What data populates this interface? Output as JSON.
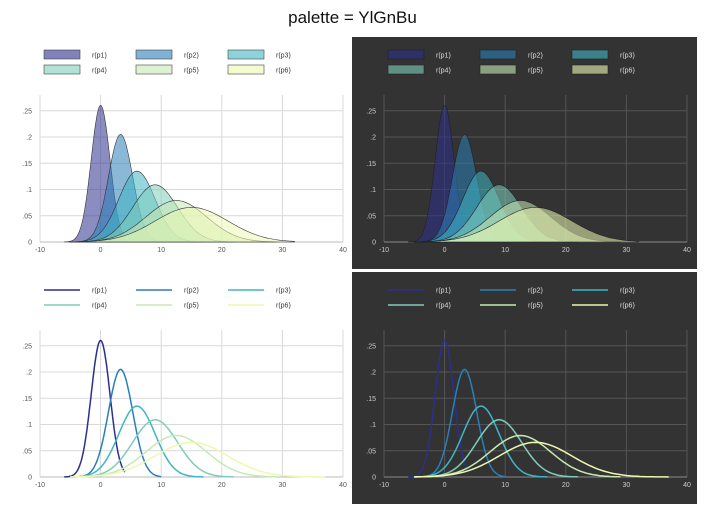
{
  "title": "palette = YlGnBu",
  "legend_labels": [
    "r(p1)",
    "r(p2)",
    "r(p3)",
    "r(p4)",
    "r(p5)",
    "r(p6)"
  ],
  "palette_colors": [
    "#2c2f8c",
    "#2a7fb8",
    "#40b5c4",
    "#7fcdbb",
    "#c7e9b4",
    "#edf8b1"
  ],
  "theme_colors": {
    "light_bg": "#ffffff",
    "dark_bg": "#333333",
    "light_grid": "#d9d9d9",
    "dark_grid": "#555555",
    "light_text": "#555555",
    "dark_text": "#cccccc"
  },
  "chart_data": [
    {
      "type": "area",
      "panel": "top-left",
      "theme": "light",
      "legend": "top",
      "x_ticks": [
        "-10",
        "0",
        "10",
        "20",
        "30",
        "40"
      ],
      "y_ticks": [
        "0",
        ".05",
        ".1",
        ".15",
        ".2",
        ".25"
      ],
      "xlim": [
        -10,
        40
      ],
      "ylim": [
        0,
        0.28
      ],
      "grid": true,
      "series": [
        {
          "name": "r(p1)",
          "mean": 0,
          "sd": 1.55,
          "peak": 0.26,
          "range": [
            -6,
            4
          ]
        },
        {
          "name": "r(p2)",
          "mean": 3.3,
          "sd": 2.0,
          "peak": 0.205,
          "range": [
            -5,
            10
          ]
        },
        {
          "name": "r(p3)",
          "mean": 6,
          "sd": 3.0,
          "peak": 0.135,
          "range": [
            -5,
            17
          ]
        },
        {
          "name": "r(p4)",
          "mean": 9,
          "sd": 3.7,
          "peak": 0.109,
          "range": [
            -5,
            22
          ]
        },
        {
          "name": "r(p5)",
          "mean": 12.5,
          "sd": 5.0,
          "peak": 0.079,
          "range": [
            -5,
            29
          ]
        },
        {
          "name": "r(p6)",
          "mean": 15,
          "sd": 6.0,
          "peak": 0.066,
          "range": [
            -5,
            32
          ]
        }
      ]
    },
    {
      "type": "area",
      "panel": "top-right",
      "theme": "dark",
      "legend": "top",
      "x_ticks": [
        "-10",
        "0",
        "10",
        "20",
        "30",
        "40"
      ],
      "y_ticks": [
        "0",
        ".05",
        ".1",
        ".15",
        ".2",
        ".25"
      ],
      "xlim": [
        -10,
        40
      ],
      "ylim": [
        0,
        0.28
      ],
      "grid": true,
      "series": [
        {
          "name": "r(p1)",
          "mean": 0,
          "sd": 1.55,
          "peak": 0.26,
          "range": [
            -6,
            4
          ]
        },
        {
          "name": "r(p2)",
          "mean": 3.3,
          "sd": 2.0,
          "peak": 0.205,
          "range": [
            -5,
            10
          ]
        },
        {
          "name": "r(p3)",
          "mean": 6,
          "sd": 3.0,
          "peak": 0.135,
          "range": [
            -5,
            17
          ]
        },
        {
          "name": "r(p4)",
          "mean": 9,
          "sd": 3.7,
          "peak": 0.109,
          "range": [
            -5,
            22
          ]
        },
        {
          "name": "r(p5)",
          "mean": 12.5,
          "sd": 5.0,
          "peak": 0.079,
          "range": [
            -5,
            29
          ]
        },
        {
          "name": "r(p6)",
          "mean": 15,
          "sd": 6.0,
          "peak": 0.066,
          "range": [
            -5,
            32
          ]
        }
      ]
    },
    {
      "type": "line",
      "panel": "bottom-left",
      "theme": "light",
      "legend": "top",
      "x_ticks": [
        "-10",
        "0",
        "10",
        "20",
        "30",
        "40"
      ],
      "y_ticks": [
        "0",
        ".05",
        ".1",
        ".15",
        ".2",
        ".25"
      ],
      "xlim": [
        -10,
        40
      ],
      "ylim": [
        0,
        0.28
      ],
      "grid": true,
      "series": [
        {
          "name": "r(p1)",
          "mean": 0,
          "sd": 1.55,
          "peak": 0.26,
          "range": [
            -6,
            4
          ]
        },
        {
          "name": "r(p2)",
          "mean": 3.3,
          "sd": 2.0,
          "peak": 0.205,
          "range": [
            -5,
            10
          ]
        },
        {
          "name": "r(p3)",
          "mean": 6,
          "sd": 3.0,
          "peak": 0.135,
          "range": [
            -5,
            17
          ]
        },
        {
          "name": "r(p4)",
          "mean": 9,
          "sd": 3.7,
          "peak": 0.109,
          "range": [
            -5,
            22
          ]
        },
        {
          "name": "r(p5)",
          "mean": 12.5,
          "sd": 5.0,
          "peak": 0.079,
          "range": [
            -5,
            29
          ]
        },
        {
          "name": "r(p6)",
          "mean": 15,
          "sd": 6.0,
          "peak": 0.066,
          "range": [
            -5,
            37
          ]
        }
      ]
    },
    {
      "type": "line",
      "panel": "bottom-right",
      "theme": "dark",
      "legend": "top",
      "x_ticks": [
        "-10",
        "0",
        "10",
        "20",
        "30",
        "40"
      ],
      "y_ticks": [
        "0",
        ".05",
        ".1",
        ".15",
        ".2",
        ".25"
      ],
      "xlim": [
        -10,
        40
      ],
      "ylim": [
        0,
        0.28
      ],
      "grid": true,
      "series": [
        {
          "name": "r(p1)",
          "mean": 0,
          "sd": 1.55,
          "peak": 0.26,
          "range": [
            -6,
            4
          ]
        },
        {
          "name": "r(p2)",
          "mean": 3.3,
          "sd": 2.0,
          "peak": 0.205,
          "range": [
            -5,
            10
          ]
        },
        {
          "name": "r(p3)",
          "mean": 6,
          "sd": 3.0,
          "peak": 0.135,
          "range": [
            -5,
            17
          ]
        },
        {
          "name": "r(p4)",
          "mean": 9,
          "sd": 3.7,
          "peak": 0.109,
          "range": [
            -5,
            22
          ]
        },
        {
          "name": "r(p5)",
          "mean": 12.5,
          "sd": 5.0,
          "peak": 0.079,
          "range": [
            -5,
            29
          ]
        },
        {
          "name": "r(p6)",
          "mean": 15,
          "sd": 6.0,
          "peak": 0.066,
          "range": [
            -5,
            37
          ]
        }
      ]
    }
  ]
}
